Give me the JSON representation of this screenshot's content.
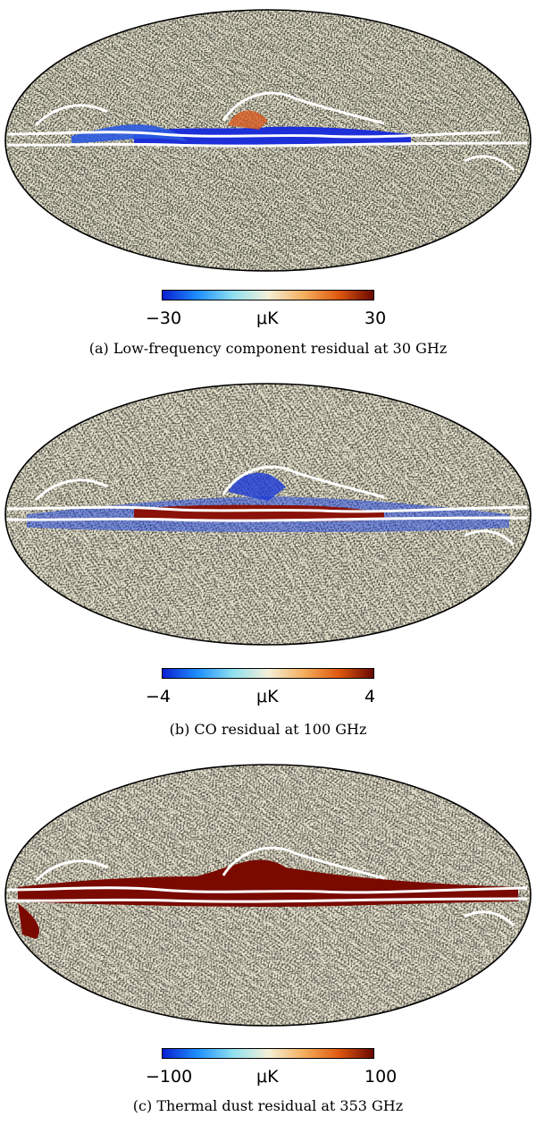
{
  "panels": [
    {
      "caption": "(a) Low-frequency component residual at 30 GHz",
      "colorbar": {
        "min_label": "−30",
        "unit_label": "μK",
        "max_label": "30"
      },
      "plane_color": "#1c2fd8"
    },
    {
      "caption": "(b) CO residual at 100 GHz",
      "colorbar": {
        "min_label": "−4",
        "unit_label": "μK",
        "max_label": "4"
      },
      "plane_color": "#8a1208"
    },
    {
      "caption": "(c) Thermal dust residual at 353 GHz",
      "colorbar": {
        "min_label": "−100",
        "unit_label": "μK",
        "max_label": "100"
      },
      "plane_color": "#7a0a00"
    }
  ],
  "colorscale": [
    "#0a1fd0",
    "#1e90ff",
    "#8fe0f0",
    "#f4f0d8",
    "#f4b060",
    "#e05a10",
    "#6a0800"
  ]
}
